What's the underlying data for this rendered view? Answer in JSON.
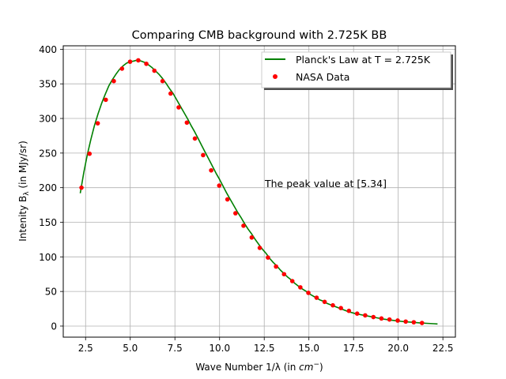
{
  "chart_data": {
    "type": "line",
    "title": "Comparing CMB background with 2.725K BB",
    "xlabel_prefix": "Wave Number 1/λ (in ",
    "xlabel_unit": "cm",
    "xlabel_sup": "−",
    "xlabel_suffix": ")",
    "ylabel_prefix": "Intenity B",
    "ylabel_sub": "λ",
    "ylabel_suffix": " (in MJy/sr)",
    "xlim": [
      1.25,
      23.2
    ],
    "ylim": [
      -16,
      405
    ],
    "xticks": [
      2.5,
      5.0,
      7.5,
      10.0,
      12.5,
      15.0,
      17.5,
      20.0,
      22.5
    ],
    "xtick_labels": [
      "2.5",
      "5.0",
      "7.5",
      "10.0",
      "12.5",
      "15.0",
      "17.5",
      "20.0",
      "22.5"
    ],
    "yticks": [
      0,
      50,
      100,
      150,
      200,
      250,
      300,
      350,
      400
    ],
    "ytick_labels": [
      "0",
      "50",
      "100",
      "150",
      "200",
      "250",
      "300",
      "350",
      "400"
    ],
    "grid": true,
    "legend_position": "top-right",
    "annotation": "The peak value at [5.34]",
    "colors": {
      "line": "#008000",
      "points": "#ff0000"
    },
    "series": [
      {
        "name": "Planck's Law at T = 2.725K",
        "kind": "line",
        "x": [
          2.2,
          2.4,
          2.6,
          2.8,
          3.0,
          3.2,
          3.4,
          3.6,
          3.8,
          4.0,
          4.2,
          4.4,
          4.6,
          4.8,
          5.0,
          5.2,
          5.34,
          5.6,
          5.8,
          6.0,
          6.2,
          6.4,
          6.6,
          6.8,
          7.0,
          7.2,
          7.4,
          7.6,
          7.8,
          8.0,
          8.2,
          8.4,
          8.6,
          8.8,
          9.0,
          9.2,
          9.4,
          9.6,
          9.8,
          10.0,
          10.2,
          10.4,
          10.6,
          10.8,
          11.0,
          11.2,
          11.4,
          11.6,
          11.8,
          12.0,
          12.2,
          12.4,
          12.6,
          12.8,
          13.0,
          13.2,
          13.4,
          13.6,
          13.8,
          14.0,
          14.2,
          14.4,
          14.6,
          14.8,
          15.0,
          15.2,
          15.4,
          15.6,
          15.8,
          16.0,
          16.4,
          16.8,
          17.2,
          17.6,
          18.0,
          18.4,
          18.8,
          19.2,
          19.6,
          20.0,
          20.4,
          20.8,
          21.2,
          21.6,
          22.0,
          22.2
        ],
        "y": [
          192,
          222,
          248,
          270,
          290,
          307,
          322,
          335,
          347,
          356,
          364,
          371,
          376,
          380,
          382,
          383,
          384,
          383,
          381,
          378,
          374,
          369,
          364,
          358,
          351,
          343,
          336,
          327,
          318,
          309,
          300,
          290,
          281,
          271,
          261,
          251,
          241,
          231,
          221,
          212,
          202,
          192,
          183,
          174,
          165,
          157,
          148,
          140,
          133,
          125,
          118,
          111,
          105,
          98,
          92,
          87,
          81,
          76,
          71,
          67,
          62,
          58,
          54,
          51,
          47,
          44,
          41,
          38,
          36,
          33,
          29,
          25,
          21,
          18,
          16,
          14,
          12,
          10,
          8.6,
          7.3,
          6.3,
          5.4,
          4.6,
          4.0,
          3.4,
          3.1
        ]
      },
      {
        "name": "NASA Data",
        "kind": "scatter",
        "x": [
          2.27,
          2.72,
          3.18,
          3.63,
          4.08,
          4.54,
          4.99,
          5.45,
          5.9,
          6.35,
          6.81,
          7.26,
          7.71,
          8.17,
          8.62,
          9.08,
          9.53,
          9.98,
          10.44,
          10.89,
          11.34,
          11.8,
          12.25,
          12.71,
          13.16,
          13.61,
          14.07,
          14.52,
          14.97,
          15.43,
          15.88,
          16.34,
          16.79,
          17.24,
          17.7,
          18.15,
          18.61,
          19.06,
          19.51,
          19.97,
          20.42,
          20.87,
          21.33
        ],
        "y": [
          200,
          249,
          293,
          327,
          354,
          372,
          382,
          384,
          379,
          369,
          354,
          336,
          316,
          294,
          271,
          247,
          225,
          203,
          183,
          163,
          145,
          128,
          113,
          99,
          86,
          75,
          65,
          56,
          48,
          41,
          35,
          30,
          26,
          22,
          18,
          15.5,
          13,
          11,
          9.5,
          8,
          6.5,
          5.5,
          4.5
        ]
      }
    ]
  }
}
